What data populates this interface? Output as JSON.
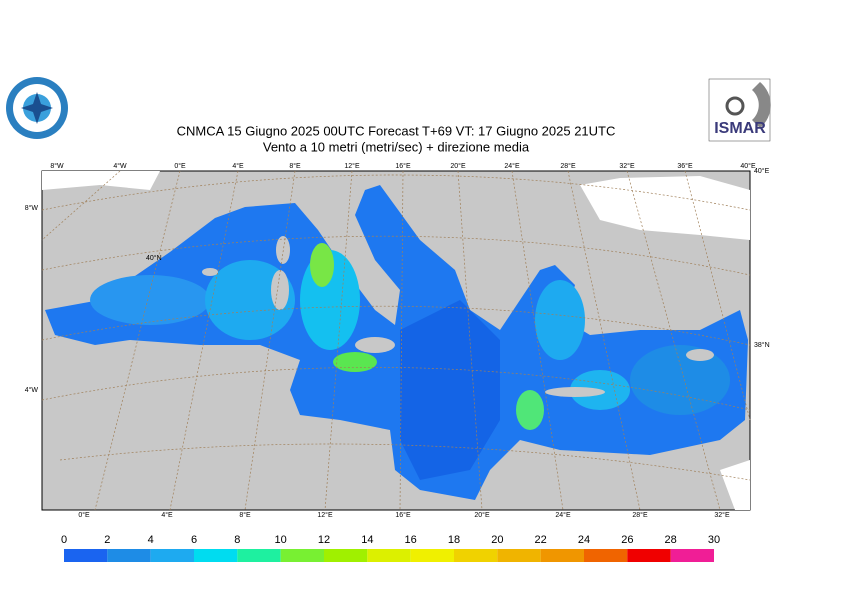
{
  "header": {
    "title_line1": "CNMCA 15   Giugno  2025 00UTC Forecast T+69 VT: 17   Giugno  2025 21UTC",
    "title_line2": "Vento a 10 metri (metri/sec) + direzione media"
  },
  "logo": {
    "right_text": "ISMAR"
  },
  "map": {
    "top_labels": [
      "8°W",
      "4°W",
      "0°E",
      "4°E",
      "8°E",
      "12°E",
      "16°E",
      "20°E",
      "24°E",
      "28°E",
      "32°E",
      "36°E",
      "40°E"
    ],
    "bottom_labels": [
      "0°E",
      "4°E",
      "8°E",
      "12°E",
      "16°E",
      "20°E",
      "24°E",
      "28°E",
      "32°E"
    ],
    "left_labels": [
      "8°W",
      "4°W"
    ],
    "right_labels": [
      "40°E",
      "38°N"
    ],
    "inner_labels": [
      "40°N"
    ]
  },
  "colorbar": {
    "ticks": [
      0,
      2,
      4,
      6,
      8,
      10,
      12,
      14,
      16,
      18,
      20,
      22,
      24,
      26,
      28,
      30
    ],
    "colors": [
      "#1a64f0",
      "#1e8ce6",
      "#1eaaf0",
      "#00dcf0",
      "#1ef0a0",
      "#78f032",
      "#a0f000",
      "#dcf000",
      "#f0f000",
      "#f0d200",
      "#f0b400",
      "#f09600",
      "#f06400",
      "#f00000",
      "#f01e96"
    ]
  }
}
